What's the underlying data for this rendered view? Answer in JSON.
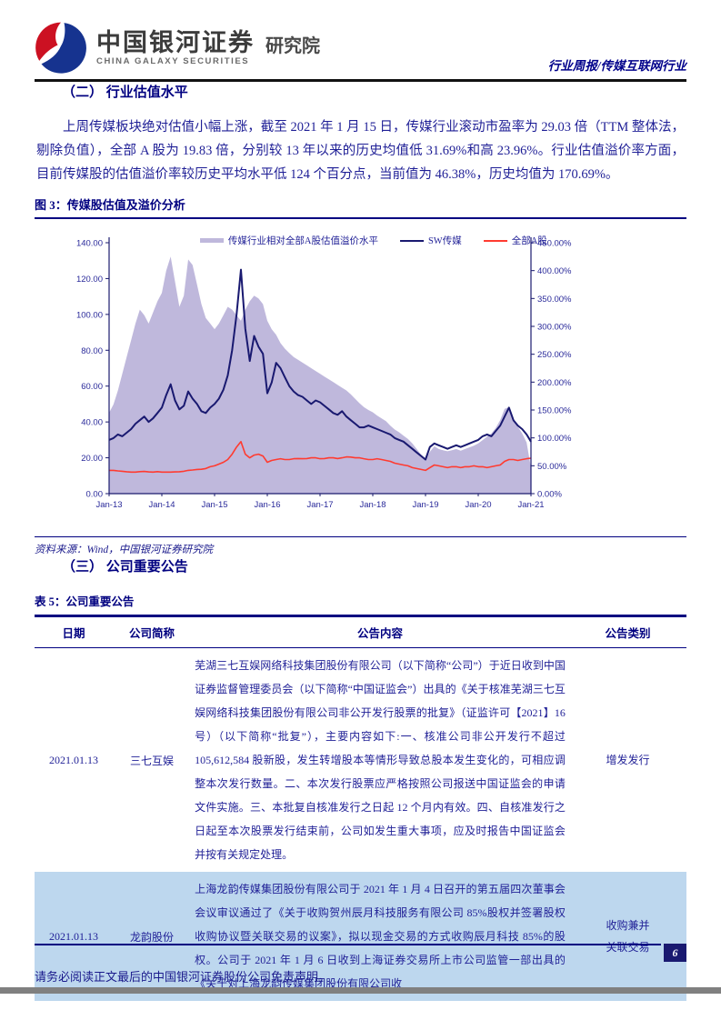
{
  "header": {
    "brand_cn": "中国银河证券",
    "brand_en": "CHINA GALAXY SECURITIES",
    "brand_suffix": "研究院",
    "report_type": "行业周报/传媒互联网行业"
  },
  "section2": {
    "heading": "（二） 行业估值水平",
    "paragraph": "上周传媒板块绝对估值小幅上涨，截至 2021 年 1 月 15 日，传媒行业滚动市盈率为 29.03 倍（TTM 整体法，剔除负值），全部 A 股为 19.83 倍，分别较 13 年以来的历史均值低 31.69%和高 23.96%。行业估值溢价率方面，目前传媒股的估值溢价率较历史平均水平低 124 个百分点，当前值为 46.38%，历史均值为 170.69%。"
  },
  "figure": {
    "caption": "图 3：传媒股估值及溢价分析",
    "source": "资料来源：Wind，中国银河证券研究院"
  },
  "chart_data": {
    "type": "line",
    "title": "传媒股估值及溢价分析",
    "legend_position": "top",
    "grid": false,
    "x_labels": [
      "Jan-13",
      "Jan-14",
      "Jan-15",
      "Jan-16",
      "Jan-17",
      "Jan-18",
      "Jan-19",
      "Jan-20",
      "Jan-21"
    ],
    "x_label_every": 12,
    "left_axis": {
      "min": 0,
      "max": 140,
      "step": 20,
      "format": "number2"
    },
    "right_axis": {
      "min": 0,
      "max": 450,
      "step": 50,
      "format": "percent2"
    },
    "series": [
      {
        "name": "传媒行业相对全部A股估值溢价水平",
        "type": "area",
        "axis": "right",
        "color": "#bfb8dc",
        "values": [
          145,
          160,
          185,
          215,
          245,
          275,
          305,
          330,
          320,
          305,
          325,
          345,
          360,
          400,
          425,
          380,
          335,
          355,
          420,
          410,
          375,
          340,
          315,
          305,
          295,
          305,
          320,
          335,
          330,
          320,
          310,
          330,
          345,
          355,
          350,
          340,
          310,
          295,
          285,
          270,
          260,
          252,
          245,
          240,
          235,
          230,
          225,
          220,
          215,
          210,
          205,
          200,
          195,
          190,
          185,
          178,
          170,
          162,
          155,
          150,
          146,
          140,
          135,
          130,
          122,
          115,
          110,
          104,
          98,
          90,
          80,
          70,
          62,
          75,
          85,
          80,
          78,
          76,
          78,
          80,
          77,
          80,
          83,
          86,
          90,
          96,
          102,
          108,
          118,
          132,
          152,
          155,
          132,
          120,
          108,
          92,
          46
        ]
      },
      {
        "name": "SW传媒",
        "type": "line",
        "axis": "left",
        "color": "#191970",
        "values": [
          30,
          31,
          33,
          32,
          34,
          36,
          39,
          41,
          43,
          40,
          42,
          45,
          48,
          55,
          61,
          52,
          47,
          49,
          57,
          53,
          50,
          46,
          45,
          48,
          50,
          53,
          58,
          66,
          80,
          100,
          125,
          92,
          74,
          88,
          82,
          78,
          56,
          62,
          73,
          70,
          65,
          60,
          57,
          55,
          54,
          52,
          50,
          52,
          51,
          49,
          47,
          45,
          44,
          46,
          43,
          41,
          39,
          37,
          37,
          38,
          37,
          36,
          35,
          34,
          33,
          31,
          30,
          29,
          27,
          25,
          23,
          21,
          19,
          26,
          28,
          27,
          26,
          25,
          26,
          27,
          26,
          27,
          28,
          29,
          30,
          32,
          33,
          32,
          35,
          38,
          43,
          48,
          41,
          38,
          36,
          33,
          29
        ]
      },
      {
        "name": "全部A股",
        "type": "line",
        "axis": "left",
        "color": "#ff3b30",
        "values": [
          13,
          13,
          12.7,
          12.5,
          12.2,
          12,
          12,
          12.3,
          12.4,
          12.1,
          12,
          12.3,
          12,
          12,
          12,
          12.1,
          12.2,
          12.5,
          13,
          13.2,
          13.5,
          13.6,
          14,
          15,
          15.5,
          16.5,
          17.5,
          19,
          22,
          26,
          29,
          22,
          20,
          21.5,
          22,
          21,
          17.5,
          18.5,
          19,
          19.5,
          19,
          19,
          19.5,
          19.6,
          19.5,
          19.6,
          20,
          20,
          19.5,
          19.6,
          20,
          20,
          19.6,
          20,
          20.5,
          20.4,
          20,
          20,
          19.5,
          19,
          19,
          19.5,
          19,
          18.5,
          18,
          17,
          16.5,
          16,
          15.5,
          14.5,
          14,
          13.5,
          13,
          14.5,
          16,
          15.5,
          15,
          14.5,
          15,
          15,
          14.5,
          15,
          15,
          15.5,
          15,
          15,
          14.5,
          15,
          15.5,
          16,
          18,
          19,
          19,
          18.5,
          19,
          19.5,
          19.8
        ]
      }
    ]
  },
  "section3": {
    "heading": "（三） 公司重要公告"
  },
  "table": {
    "caption": "表 5：公司重要公告",
    "columns": [
      "日期",
      "公司简称",
      "公告内容",
      "公告类别"
    ],
    "rows": [
      {
        "date": "2021.01.13",
        "company": "三七互娱",
        "content": "芜湖三七互娱网络科技集团股份有限公司（以下简称“公司”）于近日收到中国证券监督管理委员会（以下简称“中国证监会”）出具的《关于核准芜湖三七互娱网络科技集团股份有限公司非公开发行股票的批复》（证监许可【2021】16 号）（以下简称“批复”），主要内容如下:一、核准公司非公开发行不超过 105,612,584 股新股，发生转增股本等情形导致总股本发生变化的，可相应调整本次发行数量。二、本次发行股票应严格按照公司报送中国证监会的申请文件实施。三、本批复自核准发行之日起 12 个月内有效。四、自核准发行之日起至本次股票发行结束前，公司如发生重大事项，应及时报告中国证监会并按有关规定处理。",
        "type": "增发发行"
      },
      {
        "date": "2021.01.13",
        "company": "龙韵股份",
        "content": "上海龙韵传媒集团股份有限公司于 2021 年 1 月 4 日召开的第五届四次董事会会议审议通过了《关于收购贺州辰月科技服务有限公司 85%股权并签署股权收购协议暨关联交易的议案》，拟以现金交易的方式收购辰月科技 85%的股权。公司于 2021 年 1 月 6 日收到上海证券交易所上市公司监管一部出具的《关于对上海龙韵传媒集团股份有限公司收",
        "type": "收购兼并\n关联交易"
      }
    ]
  },
  "footer": {
    "disclaimer": "请务必阅读正文最后的中国银河证券股份公司免责声明。",
    "page": "6"
  },
  "colors": {
    "accent_navy": "#000080",
    "body_text": "#1f1f96",
    "area_fill": "#bfb8dc",
    "sw_media_line": "#191970",
    "all_a_line": "#ff3b30",
    "row_highlight": "#bdd7ee",
    "page_box": "#191970",
    "gray_bar": "#808080",
    "logo_blue": "#16338f",
    "logo_red": "#cc1122"
  }
}
